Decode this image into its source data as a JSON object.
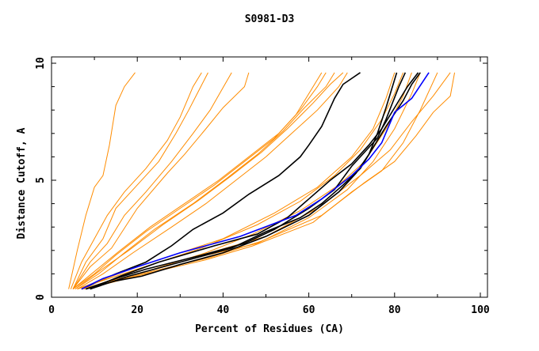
{
  "chart_data": {
    "type": "line",
    "title": "S0981-D3",
    "xlabel": "Percent of Residues (CA)",
    "ylabel": "Distance Cutoff, A",
    "xlim": [
      0,
      100
    ],
    "ylim": [
      0,
      10
    ],
    "xticks": [
      "0",
      "20",
      "40",
      "60",
      "80",
      "100"
    ],
    "yticks": [
      "0",
      "5",
      "10"
    ],
    "grid": false,
    "series": [
      {
        "color": "#ff8c00",
        "points": [
          [
            4,
            0.35
          ],
          [
            6,
            2
          ],
          [
            8,
            3.5
          ],
          [
            10,
            4.7
          ],
          [
            12,
            5.2
          ],
          [
            13.5,
            6.5
          ],
          [
            15,
            8.2
          ],
          [
            17,
            9
          ],
          [
            19.5,
            9.6
          ]
        ]
      },
      {
        "color": "#ff8c00",
        "points": [
          [
            4.5,
            0.35
          ],
          [
            7,
            1.5
          ],
          [
            10,
            2.5
          ],
          [
            13,
            3.5
          ],
          [
            17,
            4.5
          ],
          [
            22,
            5.5
          ],
          [
            27,
            6.7
          ],
          [
            30,
            7.7
          ],
          [
            33,
            9
          ],
          [
            35,
            9.6
          ]
        ]
      },
      {
        "color": "#ff8c00",
        "points": [
          [
            5,
            0.35
          ],
          [
            8,
            1.5
          ],
          [
            12,
            2.5
          ],
          [
            15,
            3.8
          ],
          [
            20,
            4.8
          ],
          [
            25,
            5.8
          ],
          [
            29,
            7
          ],
          [
            32,
            8
          ],
          [
            36.5,
            9.6
          ]
        ]
      },
      {
        "color": "#ff8c00",
        "points": [
          [
            5,
            0.35
          ],
          [
            9,
            1.5
          ],
          [
            13,
            2.3
          ],
          [
            17,
            3.5
          ],
          [
            22,
            4.5
          ],
          [
            28,
            5.8
          ],
          [
            33,
            7
          ],
          [
            37,
            8
          ],
          [
            42,
            9.6
          ]
        ]
      },
      {
        "color": "#ff8c00",
        "points": [
          [
            5,
            0.35
          ],
          [
            9,
            1.3
          ],
          [
            14,
            2.1
          ],
          [
            20,
            3.8
          ],
          [
            27,
            5.3
          ],
          [
            31,
            6.1
          ],
          [
            36,
            7.2
          ],
          [
            40,
            8.1
          ],
          [
            45,
            9.0
          ],
          [
            46,
            9.6
          ]
        ]
      },
      {
        "color": "#ff8c00",
        "points": [
          [
            5,
            0.35
          ],
          [
            10,
            1
          ],
          [
            15,
            1.8
          ],
          [
            22,
            2.8
          ],
          [
            30,
            3.8
          ],
          [
            38,
            4.8
          ],
          [
            45,
            5.8
          ],
          [
            52,
            6.8
          ],
          [
            57,
            7.8
          ],
          [
            61,
            9
          ],
          [
            63,
            9.6
          ]
        ]
      },
      {
        "color": "#ff8c00",
        "points": [
          [
            5,
            0.35
          ],
          [
            10,
            1.1
          ],
          [
            16,
            2
          ],
          [
            23,
            3
          ],
          [
            31,
            4
          ],
          [
            39,
            5
          ],
          [
            46,
            6
          ],
          [
            53,
            7
          ],
          [
            58,
            8
          ],
          [
            62,
            9
          ],
          [
            64,
            9.6
          ]
        ]
      },
      {
        "color": "#ff8c00",
        "points": [
          [
            5.5,
            0.35
          ],
          [
            11,
            1
          ],
          [
            17,
            1.9
          ],
          [
            24,
            2.9
          ],
          [
            33,
            4
          ],
          [
            41,
            5.1
          ],
          [
            48,
            6.1
          ],
          [
            54,
            7.1
          ],
          [
            59,
            8.1
          ],
          [
            64,
            9
          ],
          [
            66,
            9.6
          ]
        ]
      },
      {
        "color": "#ff8c00",
        "points": [
          [
            5.5,
            0.35
          ],
          [
            11,
            1.1
          ],
          [
            18,
            2
          ],
          [
            26,
            3.1
          ],
          [
            34,
            4.1
          ],
          [
            42,
            5.2
          ],
          [
            49,
            6.2
          ],
          [
            55,
            7.2
          ],
          [
            61,
            8.3
          ],
          [
            65,
            9.1
          ],
          [
            68,
            9.6
          ]
        ]
      },
      {
        "color": "#ff8c00",
        "points": [
          [
            6,
            0.35
          ],
          [
            12,
            1
          ],
          [
            19,
            1.9
          ],
          [
            28,
            3
          ],
          [
            36,
            4
          ],
          [
            43,
            5
          ],
          [
            50,
            6
          ],
          [
            56,
            7
          ],
          [
            62,
            8
          ],
          [
            67,
            9
          ],
          [
            69,
            9.6
          ]
        ]
      },
      {
        "color": "#000000",
        "points": [
          [
            7,
            0.35
          ],
          [
            15,
            1
          ],
          [
            22,
            1.5
          ],
          [
            28,
            2.2
          ],
          [
            33,
            2.9
          ],
          [
            40,
            3.6
          ],
          [
            46,
            4.4
          ],
          [
            53,
            5.2
          ],
          [
            58,
            6
          ],
          [
            60,
            6.5
          ],
          [
            63,
            7.3
          ],
          [
            66,
            8.5
          ],
          [
            68,
            9.1
          ],
          [
            72,
            9.6
          ]
        ]
      },
      {
        "color": "#ff8c00",
        "points": [
          [
            6,
            0.35
          ],
          [
            20,
            1.3
          ],
          [
            30,
            1.9
          ],
          [
            40,
            2.5
          ],
          [
            52,
            3.6
          ],
          [
            62,
            4.7
          ],
          [
            70,
            6
          ],
          [
            75,
            7.2
          ],
          [
            78,
            8.5
          ],
          [
            80,
            9.6
          ]
        ]
      },
      {
        "color": "#ff8c00",
        "points": [
          [
            6,
            0.35
          ],
          [
            20,
            1.2
          ],
          [
            35,
            2.1
          ],
          [
            48,
            3.1
          ],
          [
            58,
            4.1
          ],
          [
            66,
            5.2
          ],
          [
            72,
            6.3
          ],
          [
            77,
            7.6
          ],
          [
            80,
            8.7
          ],
          [
            82,
            9.6
          ]
        ]
      },
      {
        "color": "#ff8c00",
        "points": [
          [
            7,
            0.35
          ],
          [
            22,
            1.1
          ],
          [
            36,
            1.9
          ],
          [
            47,
            2.7
          ],
          [
            58,
            3.7
          ],
          [
            67,
            4.8
          ],
          [
            73,
            5.8
          ],
          [
            78,
            7.2
          ],
          [
            82,
            8.6
          ],
          [
            84,
            9.6
          ]
        ]
      },
      {
        "color": "#ff8c00",
        "points": [
          [
            7,
            0.35
          ],
          [
            20,
            1
          ],
          [
            34,
            1.7
          ],
          [
            48,
            2.3
          ],
          [
            60,
            3.4
          ],
          [
            69,
            4.6
          ],
          [
            75,
            5.8
          ],
          [
            80,
            7.2
          ],
          [
            84,
            8.7
          ],
          [
            86,
            9.6
          ]
        ]
      },
      {
        "color": "#ff8c00",
        "points": [
          [
            8,
            0.35
          ],
          [
            22,
            1
          ],
          [
            36,
            1.6
          ],
          [
            47,
            2.2
          ],
          [
            61,
            3.2
          ],
          [
            70,
            4.5
          ],
          [
            77,
            5.4
          ],
          [
            82,
            6.6
          ],
          [
            86,
            8
          ],
          [
            90,
            9.6
          ]
        ]
      },
      {
        "color": "#ff8c00",
        "points": [
          [
            8,
            0.35
          ],
          [
            21,
            1
          ],
          [
            37,
            1.7
          ],
          [
            49,
            2.4
          ],
          [
            63,
            3.5
          ],
          [
            73,
            4.9
          ],
          [
            80,
            5.8
          ],
          [
            85,
            6.9
          ],
          [
            89,
            7.9
          ],
          [
            93,
            8.6
          ],
          [
            94,
            9.6
          ]
        ]
      },
      {
        "color": "#ff8c00",
        "points": [
          [
            7.5,
            0.35
          ],
          [
            20,
            1.1
          ],
          [
            35,
            1.8
          ],
          [
            50,
            2.6
          ],
          [
            62,
            3.8
          ],
          [
            72,
            5.2
          ],
          [
            79,
            6.3
          ],
          [
            84,
            7.5
          ],
          [
            89,
            8.6
          ],
          [
            93,
            9.6
          ]
        ]
      },
      {
        "color": "#000000",
        "points": [
          [
            8,
            0.35
          ],
          [
            15,
            0.7
          ],
          [
            21,
            0.9
          ],
          [
            30,
            1.4
          ],
          [
            40,
            1.9
          ],
          [
            50,
            2.6
          ],
          [
            60,
            3.5
          ],
          [
            67,
            4.5
          ],
          [
            71,
            5.3
          ],
          [
            74,
            6.1
          ],
          [
            76,
            7
          ],
          [
            78,
            8.1
          ],
          [
            79,
            8.7
          ],
          [
            80.5,
            9.6
          ]
        ]
      },
      {
        "color": "#000000",
        "points": [
          [
            8,
            0.35
          ],
          [
            15,
            0.8
          ],
          [
            22,
            1.2
          ],
          [
            35,
            1.8
          ],
          [
            45,
            2.3
          ],
          [
            52,
            2.9
          ],
          [
            60,
            3.8
          ],
          [
            66,
            4.6
          ],
          [
            70,
            5.6
          ],
          [
            73,
            6.2
          ],
          [
            76,
            6.8
          ],
          [
            78,
            7.6
          ],
          [
            81,
            9
          ],
          [
            82.5,
            9.6
          ]
        ]
      },
      {
        "color": "#000000",
        "points": [
          [
            9,
            0.35
          ],
          [
            16,
            0.9
          ],
          [
            25,
            1.5
          ],
          [
            38,
            2.2
          ],
          [
            48,
            2.7
          ],
          [
            55,
            3.4
          ],
          [
            60,
            4.2
          ],
          [
            65,
            5
          ],
          [
            70,
            5.7
          ],
          [
            74,
            6.5
          ],
          [
            77,
            7.2
          ],
          [
            80,
            8.1
          ],
          [
            83,
            9
          ],
          [
            85.5,
            9.6
          ]
        ]
      },
      {
        "color": "#000000",
        "points": [
          [
            9,
            0.35
          ],
          [
            18,
            0.9
          ],
          [
            30,
            1.5
          ],
          [
            42,
            2.1
          ],
          [
            50,
            2.8
          ],
          [
            58,
            3.4
          ],
          [
            63,
            4
          ],
          [
            68,
            4.8
          ],
          [
            72,
            5.5
          ],
          [
            75,
            6.4
          ],
          [
            78,
            7.3
          ],
          [
            82,
            8.4
          ],
          [
            84,
            9.1
          ],
          [
            86,
            9.6
          ]
        ]
      },
      {
        "color": "#0000ff",
        "points": [
          [
            7,
            0.35
          ],
          [
            12,
            0.8
          ],
          [
            20,
            1.3
          ],
          [
            30,
            1.9
          ],
          [
            44,
            2.6
          ],
          [
            57,
            3.5
          ],
          [
            63,
            4.2
          ],
          [
            70,
            5.2
          ],
          [
            74,
            5.9
          ],
          [
            77,
            6.6
          ],
          [
            80,
            7.9
          ],
          [
            84,
            8.5
          ],
          [
            88,
            9.6
          ]
        ]
      }
    ]
  }
}
